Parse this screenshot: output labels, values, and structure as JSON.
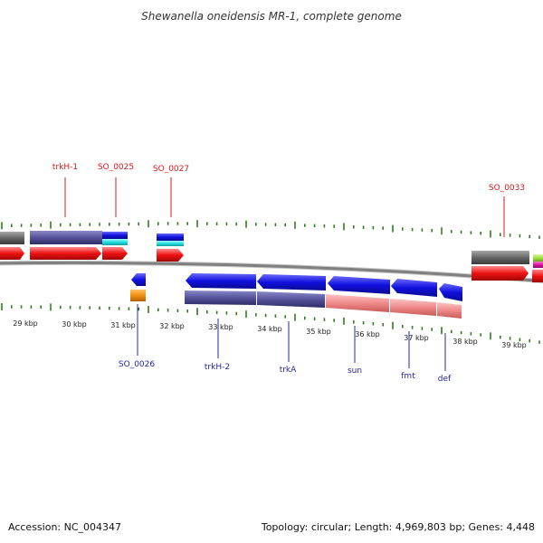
{
  "title": "Shewanella oneidensis MR-1, complete genome",
  "footer": {
    "accession": "Accession: NC_004347",
    "topology": "Topology: circular; Length: 4,969,803 bp; Genes: 4,448"
  },
  "colors": {
    "backbone": "#808080",
    "tick": "#2f7d1e",
    "gene_label_forward": "#d81818",
    "gene_label_reverse": "#2424a8",
    "cds": "#1010e0",
    "gene_reverse": "#55529a",
    "gene_forward": "#ee1111",
    "rna_pink": "#f08a8a",
    "cyan": "#22e0e0",
    "orange": "#f09010",
    "grey_feature": "#666666",
    "magenta": "#e010a0",
    "lime": "#a0e040"
  },
  "kbp_labels": [
    "29 kbp",
    "30 kbp",
    "31 kbp",
    "32 kbp",
    "33 kbp",
    "34 kbp",
    "35 kbp",
    "36 kbp",
    "37 kbp",
    "38 kbp",
    "39 kbp"
  ],
  "top_labels": [
    {
      "name": "trkH-1"
    },
    {
      "name": "SO_0025"
    },
    {
      "name": "SO_0027"
    },
    {
      "name": "SO_0033"
    }
  ],
  "bottom_labels": [
    {
      "name": "SO_0026"
    },
    {
      "name": "trkH-2"
    },
    {
      "name": "trkA"
    },
    {
      "name": "sun"
    },
    {
      "name": "fmt"
    },
    {
      "name": "def"
    }
  ]
}
